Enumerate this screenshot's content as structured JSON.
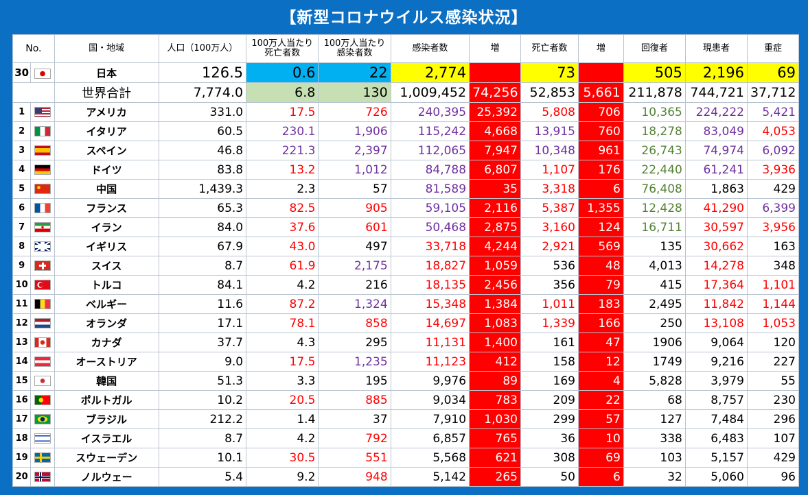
{
  "title": "【新型コロナウイルス感染状況】",
  "headers": {
    "no": "No.",
    "region": "国・地域",
    "population": "人口（100万人）",
    "deaths_per_million": "100万人当たり死亡者数",
    "cases_per_million": "100万人当たり感染者数",
    "cases": "感染者数",
    "cases_increase": "増",
    "deaths": "死亡者数",
    "deaths_increase": "増",
    "recovered": "回復者",
    "active": "現患者",
    "serious": "重症"
  },
  "japan": {
    "no": "30",
    "name": "日本",
    "population": "126.5",
    "deaths_per_million": "0.6",
    "cases_per_million": "22",
    "cases": "2,774",
    "cases_increase": "",
    "deaths": "73",
    "deaths_increase": "",
    "recovered": "505",
    "active": "2,196",
    "serious": "69"
  },
  "world": {
    "name": "世界合計",
    "population": "7,774.0",
    "deaths_per_million": "6.8",
    "cases_per_million": "130",
    "cases": "1,009,452",
    "cases_increase": "74,256",
    "deaths": "52,853",
    "deaths_increase": "5,661",
    "recovered": "211,878",
    "active": "744,721",
    "serious": "37,712"
  },
  "rows": [
    {
      "no": "1",
      "flag": "us",
      "name": "アメリカ",
      "pop": "331.0",
      "dpm": "17.5",
      "cpm": "726",
      "cases": "240,395",
      "cinc": "25,392",
      "deaths": "5,808",
      "dinc": "706",
      "rec": "10,365",
      "act": "224,222",
      "sev": "5,421",
      "c_dpm": "red",
      "c_cpm": "red",
      "c_cases": "pur",
      "c_deaths": "red",
      "c_rec": "grn",
      "c_act": "pur",
      "c_sev": "pur"
    },
    {
      "no": "2",
      "flag": "it",
      "name": "イタリア",
      "pop": "60.5",
      "dpm": "230.1",
      "cpm": "1,906",
      "cases": "115,242",
      "cinc": "4,668",
      "deaths": "13,915",
      "dinc": "760",
      "rec": "18,278",
      "act": "83,049",
      "sev": "4,053",
      "c_dpm": "pur",
      "c_cpm": "pur",
      "c_cases": "pur",
      "c_deaths": "pur",
      "c_rec": "grn",
      "c_act": "pur",
      "c_sev": "red"
    },
    {
      "no": "3",
      "flag": "es",
      "name": "スペイン",
      "pop": "46.8",
      "dpm": "221.3",
      "cpm": "2,397",
      "cases": "112,065",
      "cinc": "7,947",
      "deaths": "10,348",
      "dinc": "961",
      "rec": "26,743",
      "act": "74,974",
      "sev": "6,092",
      "c_dpm": "pur",
      "c_cpm": "pur",
      "c_cases": "pur",
      "c_deaths": "pur",
      "c_rec": "grn",
      "c_act": "pur",
      "c_sev": "pur"
    },
    {
      "no": "4",
      "flag": "de",
      "name": "ドイツ",
      "pop": "83.8",
      "dpm": "13.2",
      "cpm": "1,012",
      "cases": "84,788",
      "cinc": "6,807",
      "deaths": "1,107",
      "dinc": "176",
      "rec": "22,440",
      "act": "61,241",
      "sev": "3,936",
      "c_dpm": "red",
      "c_cpm": "pur",
      "c_cases": "pur",
      "c_deaths": "red",
      "c_rec": "grn",
      "c_act": "pur",
      "c_sev": "red"
    },
    {
      "no": "5",
      "flag": "cn",
      "name": "中国",
      "pop": "1,439.3",
      "dpm": "2.3",
      "cpm": "57",
      "cases": "81,589",
      "cinc": "35",
      "deaths": "3,318",
      "dinc": "6",
      "rec": "76,408",
      "act": "1,863",
      "sev": "429",
      "c_dpm": "",
      "c_cpm": "",
      "c_cases": "pur",
      "c_deaths": "red",
      "c_rec": "grn",
      "c_act": "",
      "c_sev": ""
    },
    {
      "no": "6",
      "flag": "fr",
      "name": "フランス",
      "pop": "65.3",
      "dpm": "82.5",
      "cpm": "905",
      "cases": "59,105",
      "cinc": "2,116",
      "deaths": "5,387",
      "dinc": "1,355",
      "rec": "12,428",
      "act": "41,290",
      "sev": "6,399",
      "c_dpm": "red",
      "c_cpm": "red",
      "c_cases": "pur",
      "c_deaths": "red",
      "c_rec": "grn",
      "c_act": "red",
      "c_sev": "pur"
    },
    {
      "no": "7",
      "flag": "ir",
      "name": "イラン",
      "pop": "84.0",
      "dpm": "37.6",
      "cpm": "601",
      "cases": "50,468",
      "cinc": "2,875",
      "deaths": "3,160",
      "dinc": "124",
      "rec": "16,711",
      "act": "30,597",
      "sev": "3,956",
      "c_dpm": "red",
      "c_cpm": "red",
      "c_cases": "pur",
      "c_deaths": "red",
      "c_rec": "grn",
      "c_act": "red",
      "c_sev": "red"
    },
    {
      "no": "8",
      "flag": "gb",
      "name": "イギリス",
      "pop": "67.9",
      "dpm": "43.0",
      "cpm": "497",
      "cases": "33,718",
      "cinc": "4,244",
      "deaths": "2,921",
      "dinc": "569",
      "rec": "135",
      "act": "30,662",
      "sev": "163",
      "c_dpm": "red",
      "c_cpm": "",
      "c_cases": "red",
      "c_deaths": "red",
      "c_rec": "",
      "c_act": "red",
      "c_sev": ""
    },
    {
      "no": "9",
      "flag": "ch",
      "name": "スイス",
      "pop": "8.7",
      "dpm": "61.9",
      "cpm": "2,175",
      "cases": "18,827",
      "cinc": "1,059",
      "deaths": "536",
      "dinc": "48",
      "rec": "4,013",
      "act": "14,278",
      "sev": "348",
      "c_dpm": "red",
      "c_cpm": "pur",
      "c_cases": "red",
      "c_deaths": "",
      "c_rec": "",
      "c_act": "red",
      "c_sev": ""
    },
    {
      "no": "10",
      "flag": "tr",
      "name": "トルコ",
      "pop": "84.1",
      "dpm": "4.2",
      "cpm": "216",
      "cases": "18,135",
      "cinc": "2,456",
      "deaths": "356",
      "dinc": "79",
      "rec": "415",
      "act": "17,364",
      "sev": "1,101",
      "c_dpm": "",
      "c_cpm": "",
      "c_cases": "red",
      "c_deaths": "",
      "c_rec": "",
      "c_act": "red",
      "c_sev": "red"
    },
    {
      "no": "11",
      "flag": "be",
      "name": "ベルギー",
      "pop": "11.6",
      "dpm": "87.2",
      "cpm": "1,324",
      "cases": "15,348",
      "cinc": "1,384",
      "deaths": "1,011",
      "dinc": "183",
      "rec": "2,495",
      "act": "11,842",
      "sev": "1,144",
      "c_dpm": "red",
      "c_cpm": "pur",
      "c_cases": "red",
      "c_deaths": "red",
      "c_rec": "",
      "c_act": "red",
      "c_sev": "red"
    },
    {
      "no": "12",
      "flag": "nl",
      "name": "オランダ",
      "pop": "17.1",
      "dpm": "78.1",
      "cpm": "858",
      "cases": "14,697",
      "cinc": "1,083",
      "deaths": "1,339",
      "dinc": "166",
      "rec": "250",
      "act": "13,108",
      "sev": "1,053",
      "c_dpm": "red",
      "c_cpm": "red",
      "c_cases": "red",
      "c_deaths": "red",
      "c_rec": "",
      "c_act": "red",
      "c_sev": "red"
    },
    {
      "no": "13",
      "flag": "ca",
      "name": "カナダ",
      "pop": "37.7",
      "dpm": "4.3",
      "cpm": "295",
      "cases": "11,131",
      "cinc": "1,400",
      "deaths": "161",
      "dinc": "47",
      "rec": "1906",
      "act": "9,064",
      "sev": "120",
      "c_dpm": "",
      "c_cpm": "",
      "c_cases": "red",
      "c_deaths": "",
      "c_rec": "",
      "c_act": "",
      "c_sev": ""
    },
    {
      "no": "14",
      "flag": "at",
      "name": "オーストリア",
      "pop": "9.0",
      "dpm": "17.5",
      "cpm": "1,235",
      "cases": "11,123",
      "cinc": "412",
      "deaths": "158",
      "dinc": "12",
      "rec": "1749",
      "act": "9,216",
      "sev": "227",
      "c_dpm": "red",
      "c_cpm": "pur",
      "c_cases": "red",
      "c_deaths": "",
      "c_rec": "",
      "c_act": "",
      "c_sev": ""
    },
    {
      "no": "15",
      "flag": "kr",
      "name": "韓国",
      "pop": "51.3",
      "dpm": "3.3",
      "cpm": "195",
      "cases": "9,976",
      "cinc": "89",
      "deaths": "169",
      "dinc": "4",
      "rec": "5,828",
      "act": "3,979",
      "sev": "55",
      "c_dpm": "",
      "c_cpm": "",
      "c_cases": "",
      "c_deaths": "",
      "c_rec": "",
      "c_act": "",
      "c_sev": ""
    },
    {
      "no": "16",
      "flag": "pt",
      "name": "ポルトガル",
      "pop": "10.2",
      "dpm": "20.5",
      "cpm": "885",
      "cases": "9,034",
      "cinc": "783",
      "deaths": "209",
      "dinc": "22",
      "rec": "68",
      "act": "8,757",
      "sev": "230",
      "c_dpm": "red",
      "c_cpm": "red",
      "c_cases": "",
      "c_deaths": "",
      "c_rec": "",
      "c_act": "",
      "c_sev": ""
    },
    {
      "no": "17",
      "flag": "br",
      "name": "ブラジル",
      "pop": "212.2",
      "dpm": "1.4",
      "cpm": "37",
      "cases": "7,910",
      "cinc": "1,030",
      "deaths": "299",
      "dinc": "57",
      "rec": "127",
      "act": "7,484",
      "sev": "296",
      "c_dpm": "",
      "c_cpm": "",
      "c_cases": "",
      "c_deaths": "",
      "c_rec": "",
      "c_act": "",
      "c_sev": ""
    },
    {
      "no": "18",
      "flag": "il",
      "name": "イスラエル",
      "pop": "8.7",
      "dpm": "4.2",
      "cpm": "792",
      "cases": "6,857",
      "cinc": "765",
      "deaths": "36",
      "dinc": "10",
      "rec": "338",
      "act": "6,483",
      "sev": "107",
      "c_dpm": "",
      "c_cpm": "red",
      "c_cases": "",
      "c_deaths": "",
      "c_rec": "",
      "c_act": "",
      "c_sev": ""
    },
    {
      "no": "19",
      "flag": "se",
      "name": "スウェーデン",
      "pop": "10.1",
      "dpm": "30.5",
      "cpm": "551",
      "cases": "5,568",
      "cinc": "621",
      "deaths": "308",
      "dinc": "69",
      "rec": "103",
      "act": "5,157",
      "sev": "429",
      "c_dpm": "red",
      "c_cpm": "red",
      "c_cases": "",
      "c_deaths": "",
      "c_rec": "",
      "c_act": "",
      "c_sev": ""
    },
    {
      "no": "20",
      "flag": "no",
      "name": "ノルウェー",
      "pop": "5.4",
      "dpm": "9.2",
      "cpm": "948",
      "cases": "5,142",
      "cinc": "265",
      "deaths": "50",
      "dinc": "6",
      "rec": "32",
      "act": "5,060",
      "sev": "96",
      "c_dpm": "",
      "c_cpm": "red",
      "c_cases": "",
      "c_deaths": "",
      "c_rec": "",
      "c_act": "",
      "c_sev": ""
    }
  ],
  "colors": {
    "red": "#ff0000",
    "yellow": "#ffff00",
    "blue": "#00b0f0",
    "green": "#c6e0b4",
    "purple": "#7030a0",
    "darkgreen": "#548235",
    "frame": "#0b6fc4"
  }
}
